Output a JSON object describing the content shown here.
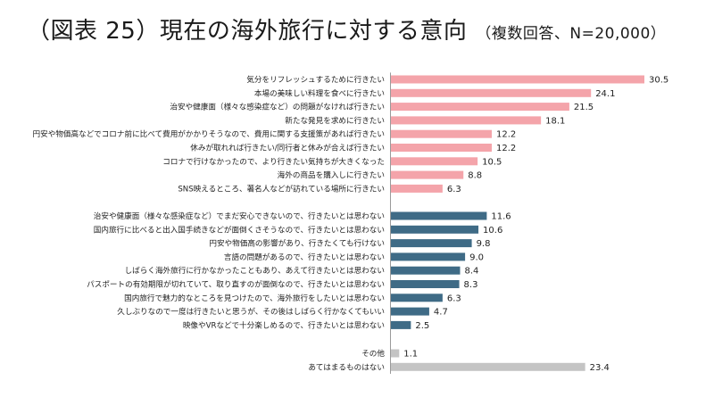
{
  "header": {
    "title": "（図表 25）現在の海外旅行に対する意向",
    "subtitle": "（複数回答、N=20,000）"
  },
  "colors": {
    "pink": "#f4a4aa",
    "blue": "#3f6b86",
    "gray": "#c4c4c4"
  },
  "chart_data": {
    "type": "bar",
    "orientation": "horizontal",
    "title": "（図表 25）現在の海外旅行に対する意向",
    "subtitle": "（複数回答、N=20,000）",
    "xlabel": "",
    "ylabel": "",
    "xlim": [
      0,
      30.5
    ],
    "grid": false,
    "legend": "none",
    "groups": [
      {
        "color": "pink",
        "categories": [
          "気分をリフレッシュするために行きたい",
          "本場の美味しい料理を食べに行きたい",
          "治安や健康面（様々な感染症など）の問題がなければ行きたい",
          "新たな発見を求めに行きたい",
          "円安や物価高などでコロナ前に比べて費用がかかりそうなので、費用に関する支援策があれば行きたい",
          "休みが取れれば行きたい/同行者と休みが合えば行きたい",
          "コロナで行けなかったので、より行きたい気持ちが大きくなった",
          "海外の商品を購入しに行きたい",
          "SNS映えるところ、著名人などが訪れている場所に行きたい"
        ],
        "values": [
          30.5,
          24.1,
          21.5,
          18.1,
          12.2,
          12.2,
          10.5,
          8.8,
          6.3
        ]
      },
      {
        "color": "blue",
        "categories": [
          "治安や健康面（様々な感染症など）でまだ安心できないので、行きたいとは思わない",
          "国内旅行に比べると出入国手続きなどが面倒くさそうなので、行きたいとは思わない",
          "円安や物価高の影響があり、行きたくても行けない",
          "言語の問題があるので、行きたいとは思わない",
          "しばらく海外旅行に行かなかったこともあり、あえて行きたいとは思わない",
          "パスポートの有効期限が切れていて、取り直すのが面倒なので、行きたいとは思わない",
          "国内旅行で魅力的なところを見つけたので、海外旅行をしたいとは思わない",
          "久しぶりなので一度は行きたいと思うが、その後はしばらく行かなくてもいい",
          "映像やVRなどで十分楽しめるので、行きたいとは思わない"
        ],
        "values": [
          11.6,
          10.6,
          9.8,
          9.0,
          8.4,
          8.3,
          6.3,
          4.7,
          2.5
        ]
      },
      {
        "color": "gray",
        "categories": [
          "その他",
          "あてはまるものはない"
        ],
        "values": [
          1.1,
          23.4
        ]
      }
    ]
  }
}
